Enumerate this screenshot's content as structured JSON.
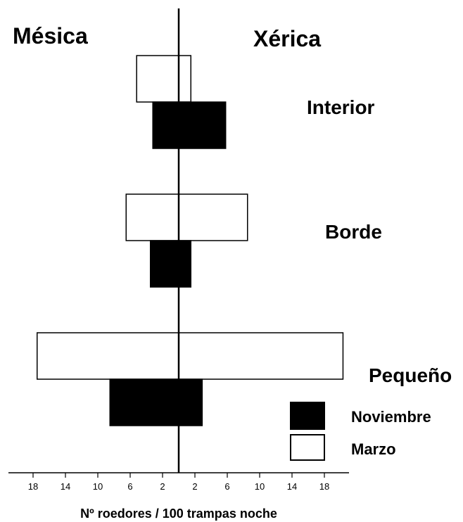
{
  "chart_data": {
    "type": "bar",
    "orientation": "horizontal-diverging",
    "sides": {
      "left": "Mésica",
      "right": "Xérica"
    },
    "xlabel": "Nº roedores / 100 trampas noche",
    "tick_labels": [
      "18",
      "14",
      "10",
      "6",
      "2",
      "2",
      "6",
      "10",
      "14",
      "18"
    ],
    "tick_values": [
      -18,
      -14,
      -10,
      -6,
      -2,
      2,
      6,
      10,
      14,
      18
    ],
    "xlim": [
      -20,
      20
    ],
    "categories": [
      "Interior",
      "Borde",
      "Pequeño"
    ],
    "series": [
      {
        "name": "Marzo",
        "color": "#ffffff",
        "left": [
          5.2,
          6.5,
          17.5
        ],
        "right": [
          1.5,
          8.5,
          20.3
        ]
      },
      {
        "name": "Noviembre",
        "color": "#000000",
        "left": [
          3.2,
          3.5,
          8.5
        ],
        "right": [
          5.8,
          1.5,
          2.9
        ]
      }
    ],
    "legend": {
      "placement": "bottom-right",
      "entries": [
        "Noviembre",
        "Marzo"
      ]
    },
    "grid": false
  }
}
